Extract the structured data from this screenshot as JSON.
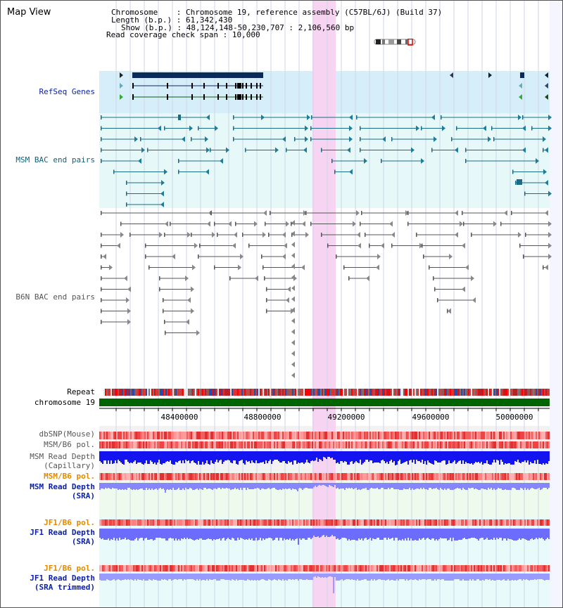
{
  "title": "Map View",
  "info": {
    "chromosome_key": "Chromosome",
    "chromosome_value": "Chromosome 19, reference assembly (C57BL/6J) (Build 37)",
    "length_key": "Length (b.p.)",
    "length_value": "61,342,430",
    "show_key": "Show (b.p.)",
    "show_value": "48,124,148-50,230,707 : 2,106,560 bp",
    "coverage_key": "Read coverage check span",
    "coverage_value": "10,000"
  },
  "tracks": {
    "refseq": "RefSeq Genes",
    "msm_bac": "MSM BAC end pairs",
    "b6n_bac": "B6N BAC end pairs",
    "repeat": "Repeat",
    "chromosome": "chromosome 19",
    "dbsnp": "dbSNP(Mouse)",
    "msm_b6_pol_1": "MSM/B6 pol.",
    "msm_depth_cap_1": "MSM Read Depth",
    "msm_depth_cap_2": "(Capillary)",
    "msm_b6_pol_2": "MSM/B6 pol.",
    "msm_depth_sra_1": "MSM Read Depth",
    "msm_depth_sra_2": "(SRA)",
    "jf1_b6_pol_1": "JF1/B6 pol.",
    "jf1_depth_sra_1": "JF1 Read Depth",
    "jf1_depth_sra_2": "(SRA)",
    "jf1_b6_pol_2": "JF1/B6 pol.",
    "jf1_depth_trim_1": "JF1 Read Depth",
    "jf1_depth_trim_2": "(SRA trimmed)"
  },
  "axis": {
    "ticks": [
      "48400000",
      "48800000",
      "49200000",
      "49600000",
      "50000000"
    ]
  },
  "colors": {
    "highlight": "#f7d4f1",
    "refseq_bg": "#d6eefa",
    "msm_bg": "#e6f8f8",
    "b6n_bg": "#ffffff",
    "chromosome_bar": "#006400",
    "sra_bg": "#eefaee",
    "depth_dark": "#0000ee",
    "depth_light": "#7a7aff"
  }
}
